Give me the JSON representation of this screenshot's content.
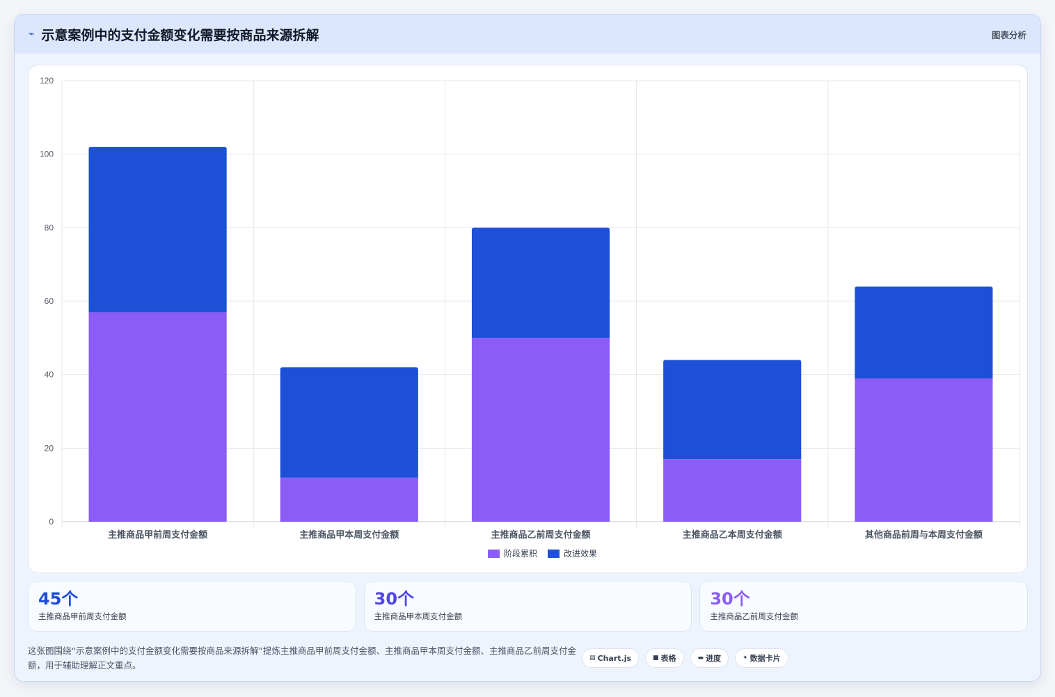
{
  "header": {
    "icon": "chart-line-icon",
    "title": "示意案例中的支付金额变化需要按商品来源拆解",
    "tag": "图表分析"
  },
  "colors": {
    "series1": "#8b5cf6",
    "series2": "#1d4fd7",
    "kpi1": "#1d4ed8",
    "kpi2": "#4f46e5",
    "kpi3": "#8b5cf6"
  },
  "chart_data": {
    "type": "bar",
    "stacked": true,
    "categories": [
      "主推商品甲前周支付金额",
      "主推商品甲本周支付金额",
      "主推商品乙前周支付金额",
      "主推商品乙本周支付金额",
      "其他商品前周与本周支付金额"
    ],
    "series": [
      {
        "name": "阶段累积",
        "values": [
          57,
          12,
          50,
          17,
          39
        ]
      },
      {
        "name": "改进效果",
        "values": [
          45,
          30,
          30,
          27,
          25
        ]
      }
    ],
    "ylim": [
      0,
      120
    ],
    "yticks": [
      0,
      20,
      40,
      60,
      80,
      100,
      120
    ],
    "grid": true,
    "legend": "bottom"
  },
  "kpis": [
    {
      "value": "45个",
      "label": "主推商品甲前周支付金额"
    },
    {
      "value": "30个",
      "label": "主推商品甲本周支付金额"
    },
    {
      "value": "30个",
      "label": "主推商品乙前周支付金额"
    }
  ],
  "footer": {
    "text": "这张图围绕“示意案例中的支付金额变化需要按商品来源拆解”提炼主推商品甲前周支付金额、主推商品甲本周支付金额、主推商品乙前周支付金额，用于辅助理解正文重点。",
    "chips": [
      {
        "icon": "chart-icon",
        "glyph": "▤",
        "label": "Chart.js"
      },
      {
        "icon": "table-icon",
        "glyph": "■",
        "label": "表格"
      },
      {
        "icon": "progress-icon",
        "glyph": "▬",
        "label": "进度"
      },
      {
        "icon": "sparkle-icon",
        "glyph": "✦",
        "label": "数据卡片"
      }
    ]
  }
}
